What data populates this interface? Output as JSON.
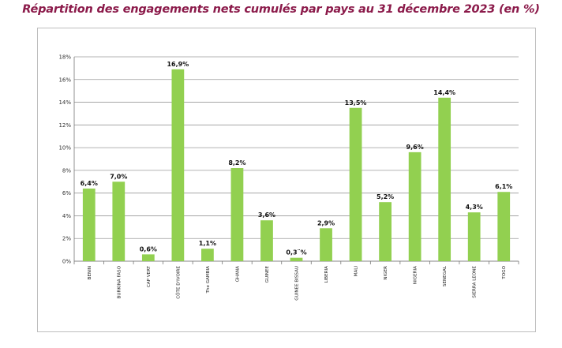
{
  "chart_data": {
    "type": "bar",
    "title": "Répartition des engagements nets cumulés par pays au 31 décembre 2023 (en %)",
    "xlabel": "",
    "ylabel": "",
    "ylim": [
      0,
      18
    ],
    "yticks": [
      "0%",
      "2%",
      "4%",
      "6%",
      "8%",
      "10%",
      "12%",
      "14%",
      "16%",
      "18%"
    ],
    "grid": true,
    "bar_color": "#92d050",
    "categories": [
      "BENIN",
      "BURKINA FASO",
      "CAP VERT",
      "CÔTE D'IVOIRE",
      "The GAMBIA",
      "GHANA",
      "GUINEE",
      "GUINEE BISSAU",
      "LIBERIA",
      "MALI",
      "NIGER",
      "NIGERIA",
      "SENEGAL",
      "SIERRA LEONE",
      "TOGO"
    ],
    "values": [
      6.4,
      7.0,
      0.6,
      16.9,
      1.1,
      8.2,
      3.6,
      0.3,
      2.9,
      13.5,
      5.2,
      9.6,
      14.4,
      4.3,
      6.1
    ],
    "data_labels": [
      "6,4%",
      "7,0%",
      "0,6%",
      "16,9%",
      "1,1%",
      "8,2%",
      "3,6%",
      "0,3¨%",
      "2,9%",
      "13,5%",
      "5,2%",
      "9,6%",
      "14,4%",
      "4,3%",
      "6,1%"
    ]
  }
}
